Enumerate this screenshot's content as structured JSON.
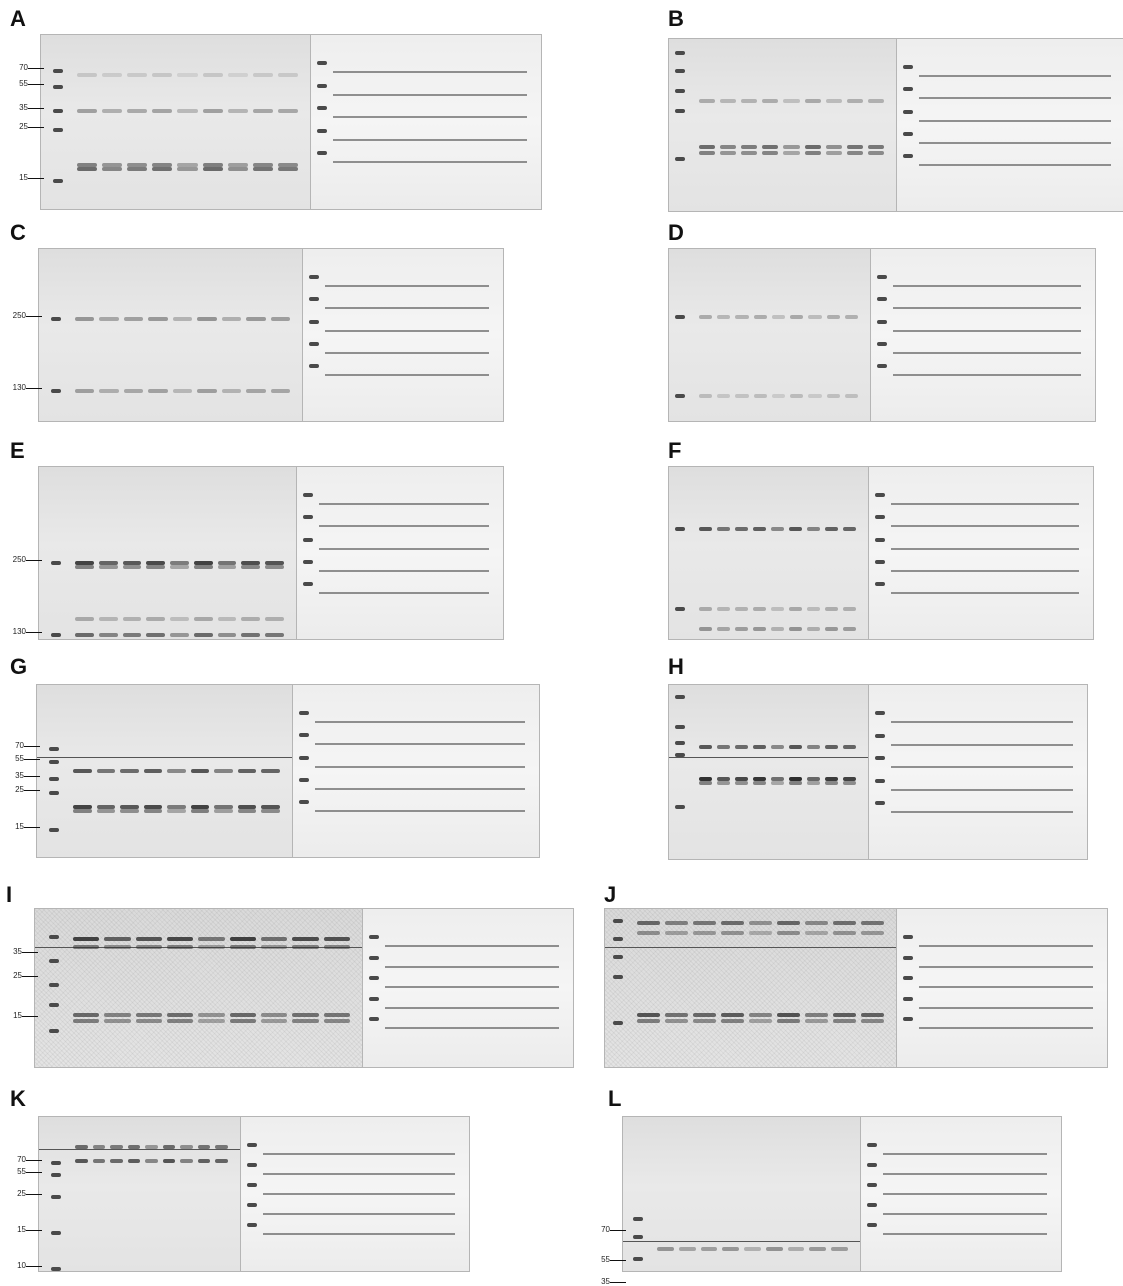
{
  "panels": [
    {
      "id": "A",
      "markers": [
        "70",
        "55",
        "35",
        "25",
        "15"
      ]
    },
    {
      "id": "B",
      "markers": []
    },
    {
      "id": "C",
      "markers": [
        "250",
        "130"
      ]
    },
    {
      "id": "D",
      "markers": []
    },
    {
      "id": "E",
      "markers": [
        "250",
        "130"
      ]
    },
    {
      "id": "F",
      "markers": []
    },
    {
      "id": "G",
      "markers": [
        "70",
        "55",
        "35",
        "25",
        "15"
      ]
    },
    {
      "id": "H",
      "markers": []
    },
    {
      "id": "I",
      "markers": [
        "35",
        "25",
        "15"
      ]
    },
    {
      "id": "J",
      "markers": []
    },
    {
      "id": "K",
      "markers": [
        "70",
        "55",
        "25",
        "15",
        "10"
      ]
    },
    {
      "id": "L",
      "markers": [
        "70",
        "55",
        "35"
      ]
    }
  ]
}
